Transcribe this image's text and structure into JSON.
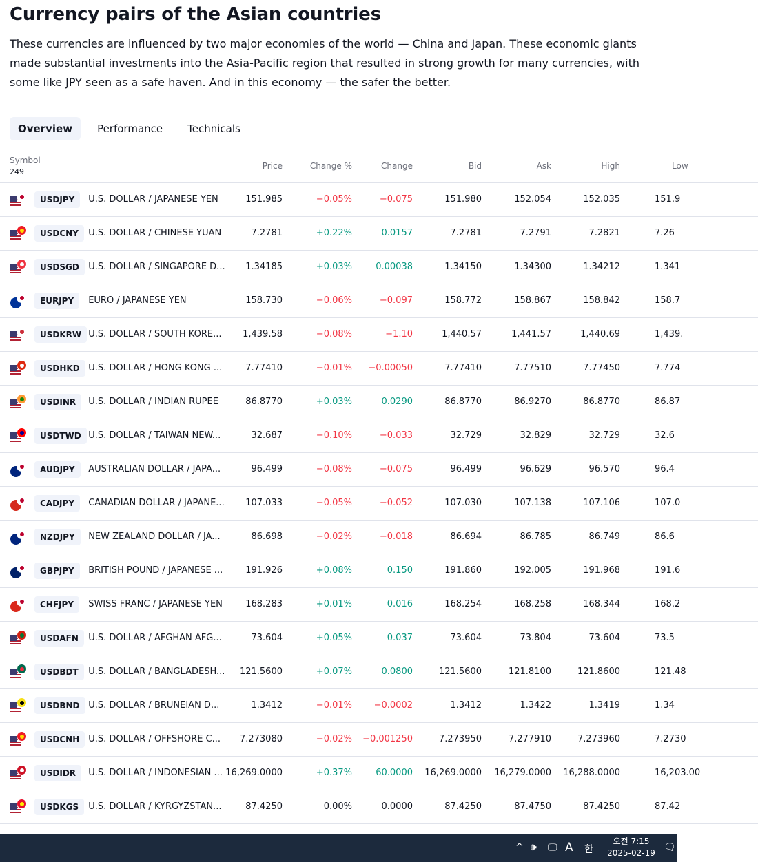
{
  "title": "Currency pairs of the Asian countries",
  "description": "These currencies are influenced by two major economies of the world — China and Japan. These economic giants made substantial investments into the Asia-Pacific region that resulted in strong growth for many currencies, with some like JPY seen as a safe haven. And in this economy — the safer the better.",
  "tabs": [
    {
      "label": "Overview",
      "active": true
    },
    {
      "label": "Performance",
      "active": false
    },
    {
      "label": "Technicals",
      "active": false
    }
  ],
  "table": {
    "symbol_header": "Symbol",
    "symbol_count": "249",
    "columns": [
      "Price",
      "Change %",
      "Change",
      "Bid",
      "Ask",
      "High",
      "Low"
    ],
    "rows": [
      {
        "ticker": "USDJPY",
        "name": "U.S. DOLLAR / JAPANESE YEN",
        "price": "151.985",
        "change_pct": "−0.05%",
        "change": "−0.075",
        "bid": "151.980",
        "ask": "152.054",
        "high": "152.035",
        "low": "151.9",
        "dir": "neg",
        "flag2": "#ffffff",
        "flag2_dot": "#bc002d"
      },
      {
        "ticker": "USDCNY",
        "name": "U.S. DOLLAR / CHINESE YUAN",
        "price": "7.2781",
        "change_pct": "+0.22%",
        "change": "0.0157",
        "bid": "7.2781",
        "ask": "7.2791",
        "high": "7.2821",
        "low": "7.26",
        "dir": "pos",
        "flag2": "#ee1c25",
        "flag2_dot": "#ffde00"
      },
      {
        "ticker": "USDSGD",
        "name": "U.S. DOLLAR / SINGAPORE D...",
        "price": "1.34185",
        "change_pct": "+0.03%",
        "change": "0.00038",
        "bid": "1.34150",
        "ask": "1.34300",
        "high": "1.34212",
        "low": "1.341",
        "dir": "pos",
        "flag2": "#ef3340",
        "flag2_dot": "#ffffff"
      },
      {
        "ticker": "EURJPY",
        "name": "EURO / JAPANESE YEN",
        "price": "158.730",
        "change_pct": "−0.06%",
        "change": "−0.097",
        "bid": "158.772",
        "ask": "158.867",
        "high": "158.842",
        "low": "158.7",
        "dir": "neg",
        "flag2": "#ffffff",
        "flag2_dot": "#bc002d",
        "eu": true
      },
      {
        "ticker": "USDKRW",
        "name": "U.S. DOLLAR / SOUTH KORE...",
        "price": "1,439.58",
        "change_pct": "−0.08%",
        "change": "−1.10",
        "bid": "1,440.57",
        "ask": "1,441.57",
        "high": "1,440.69",
        "low": "1,439.",
        "dir": "neg",
        "flag2": "#ffffff",
        "flag2_dot": "#cd2e3a"
      },
      {
        "ticker": "USDHKD",
        "name": "U.S. DOLLAR / HONG KONG ...",
        "price": "7.77410",
        "change_pct": "−0.01%",
        "change": "−0.00050",
        "bid": "7.77410",
        "ask": "7.77510",
        "high": "7.77450",
        "low": "7.774",
        "dir": "neg",
        "flag2": "#de2910",
        "flag2_dot": "#ffffff"
      },
      {
        "ticker": "USDINR",
        "name": "U.S. DOLLAR / INDIAN RUPEE",
        "price": "86.8770",
        "change_pct": "+0.03%",
        "change": "0.0290",
        "bid": "86.8770",
        "ask": "86.9270",
        "high": "86.8770",
        "low": "86.87",
        "dir": "pos",
        "flag2": "#ff9933",
        "flag2_dot": "#138808"
      },
      {
        "ticker": "USDTWD",
        "name": "U.S. DOLLAR / TAIWAN NEW...",
        "price": "32.687",
        "change_pct": "−0.10%",
        "change": "−0.033",
        "bid": "32.729",
        "ask": "32.829",
        "high": "32.729",
        "low": "32.6",
        "dir": "neg",
        "flag2": "#fe0000",
        "flag2_dot": "#000095"
      },
      {
        "ticker": "AUDJPY",
        "name": "AUSTRALIAN DOLLAR / JAPA...",
        "price": "96.499",
        "change_pct": "−0.08%",
        "change": "−0.075",
        "bid": "96.499",
        "ask": "96.629",
        "high": "96.570",
        "low": "96.4",
        "dir": "neg",
        "flag2": "#ffffff",
        "flag2_dot": "#bc002d",
        "flag1": "#00247d"
      },
      {
        "ticker": "CADJPY",
        "name": "CANADIAN DOLLAR / JAPANE...",
        "price": "107.033",
        "change_pct": "−0.05%",
        "change": "−0.052",
        "bid": "107.030",
        "ask": "107.138",
        "high": "107.106",
        "low": "107.0",
        "dir": "neg",
        "flag2": "#ffffff",
        "flag2_dot": "#bc002d",
        "flag1": "#d52b1e"
      },
      {
        "ticker": "NZDJPY",
        "name": "NEW ZEALAND DOLLAR / JA...",
        "price": "86.698",
        "change_pct": "−0.02%",
        "change": "−0.018",
        "bid": "86.694",
        "ask": "86.785",
        "high": "86.749",
        "low": "86.6",
        "dir": "neg",
        "flag2": "#ffffff",
        "flag2_dot": "#bc002d",
        "flag1": "#00247d"
      },
      {
        "ticker": "GBPJPY",
        "name": "BRITISH POUND / JAPANESE ...",
        "price": "191.926",
        "change_pct": "+0.08%",
        "change": "0.150",
        "bid": "191.860",
        "ask": "192.005",
        "high": "191.968",
        "low": "191.6",
        "dir": "pos",
        "flag2": "#ffffff",
        "flag2_dot": "#bc002d",
        "flag1": "#012169"
      },
      {
        "ticker": "CHFJPY",
        "name": "SWISS FRANC / JAPANESE YEN",
        "price": "168.283",
        "change_pct": "+0.01%",
        "change": "0.016",
        "bid": "168.254",
        "ask": "168.258",
        "high": "168.344",
        "low": "168.2",
        "dir": "pos",
        "flag2": "#ffffff",
        "flag2_dot": "#bc002d",
        "flag1": "#da291c"
      },
      {
        "ticker": "USDAFN",
        "name": "U.S. DOLLAR / AFGHAN AFG...",
        "price": "73.604",
        "change_pct": "+0.05%",
        "change": "0.037",
        "bid": "73.604",
        "ask": "73.804",
        "high": "73.604",
        "low": "73.5",
        "dir": "pos",
        "flag2": "#d32011",
        "flag2_dot": "#007a36"
      },
      {
        "ticker": "USDBDT",
        "name": "U.S. DOLLAR / BANGLADESH...",
        "price": "121.5600",
        "change_pct": "+0.07%",
        "change": "0.0800",
        "bid": "121.5600",
        "ask": "121.8100",
        "high": "121.8600",
        "low": "121.48",
        "dir": "pos",
        "flag2": "#006a4e",
        "flag2_dot": "#f42a41"
      },
      {
        "ticker": "USDBND",
        "name": "U.S. DOLLAR / BRUNEIAN D...",
        "price": "1.3412",
        "change_pct": "−0.01%",
        "change": "−0.0002",
        "bid": "1.3412",
        "ask": "1.3422",
        "high": "1.3419",
        "low": "1.34",
        "dir": "neg",
        "flag2": "#f7e017",
        "flag2_dot": "#000000"
      },
      {
        "ticker": "USDCNH",
        "name": "U.S. DOLLAR / OFFSHORE C...",
        "price": "7.273080",
        "change_pct": "−0.02%",
        "change": "−0.001250",
        "bid": "7.273950",
        "ask": "7.277910",
        "high": "7.273960",
        "low": "7.2730",
        "dir": "neg",
        "flag2": "#ee1c25",
        "flag2_dot": "#ffde00"
      },
      {
        "ticker": "USDIDR",
        "name": "U.S. DOLLAR / INDONESIAN ...",
        "price": "16,269.0000",
        "change_pct": "+0.37%",
        "change": "60.0000",
        "bid": "16,269.0000",
        "ask": "16,279.0000",
        "high": "16,288.0000",
        "low": "16,203.00",
        "dir": "pos",
        "flag2": "#ce1126",
        "flag2_dot": "#ffffff"
      },
      {
        "ticker": "USDKGS",
        "name": "U.S. DOLLAR / KYRGYZSTAN...",
        "price": "87.4250",
        "change_pct": "0.00%",
        "change": "0.0000",
        "bid": "87.4250",
        "ask": "87.4750",
        "high": "87.4250",
        "low": "87.42",
        "dir": "flat",
        "flag2": "#e8112d",
        "flag2_dot": "#ffef00"
      }
    ]
  },
  "taskbar": {
    "chevron": "^",
    "volume": "🕪",
    "network": "🖵",
    "ime": "A",
    "ime2": "한",
    "time": "오전 7:15",
    "date": "2025-02-19",
    "notifications": "🗨"
  }
}
